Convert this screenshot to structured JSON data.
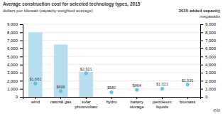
{
  "chart_data": {
    "type": "bar",
    "title": "Average construction cost for selected technology types, 2015",
    "subtitle": "dollars per kilowatt (capacity-weighted average)",
    "annotations": [
      "2015 added capacity",
      "megawatts",
      "eia"
    ],
    "categories": [
      "wind",
      "natural gas",
      "solar\nphotovoltaic",
      "hydro",
      "battery\nstorage",
      "petroleum\nliquids",
      "biomass"
    ],
    "series": [
      {
        "type": "bar",
        "color": "#b8dff0",
        "axis": "y2",
        "values": [
          8000,
          6500,
          3100,
          0,
          0,
          0,
          0
        ]
      },
      {
        "type": "scatter",
        "color": "#5bc8e8",
        "marker": "circle",
        "data_labels": true,
        "values": [
          1661,
          696,
          2921,
          580,
          864,
          1021,
          1531
        ],
        "value_labels": [
          "$1,661",
          "$696",
          "$2,921",
          "$580",
          "$864",
          "$1,021",
          "$1,531"
        ]
      }
    ],
    "ylim": [
      0,
      9000
    ],
    "yticks": [
      0,
      {
        "value": 1000,
        "label": "1,000"
      },
      {
        "value": 2000,
        "label": "2,000"
      },
      {
        "value": 3000,
        "label": "3,000"
      },
      {
        "value": 4000,
        "label": "4,000"
      },
      {
        "value": 5000,
        "label": "5,000"
      },
      {
        "value": 6000,
        "label": "6,000"
      },
      {
        "value": 7000,
        "label": "7,000"
      },
      {
        "value": 8000,
        "label": "8,000"
      },
      {
        "value": 9000,
        "label": "9,000"
      }
    ],
    "y2lim": [
      0,
      9000
    ],
    "y2ticks": [
      0,
      {
        "value": 1000,
        "label": "1,000"
      },
      {
        "value": 2000,
        "label": "2,000"
      },
      {
        "value": 3000,
        "label": "3,000"
      },
      {
        "value": 4000,
        "label": "4,000"
      },
      {
        "value": 5000,
        "label": "5,000"
      },
      {
        "value": 6000,
        "label": "6,000"
      },
      {
        "value": 7000,
        "label": "7,000"
      },
      {
        "value": 8000,
        "label": "8,000"
      },
      {
        "value": 9000,
        "label": "9,000"
      }
    ],
    "grid": true
  }
}
